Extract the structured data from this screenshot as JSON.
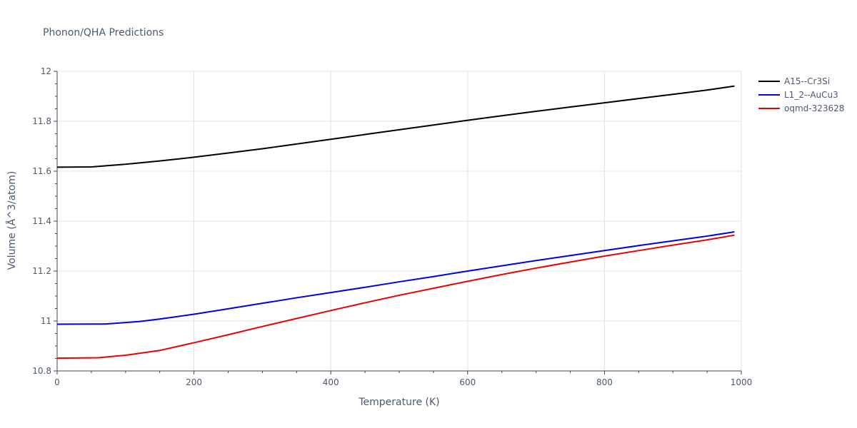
{
  "chart_data": {
    "type": "line",
    "title": "Phonon/QHA Predictions",
    "xlabel": "Temperature (K)",
    "ylabel": "Volume (Å^3/atom)",
    "xlim": [
      0,
      1000
    ],
    "ylim": [
      10.8,
      12
    ],
    "xticks": [
      0,
      200,
      400,
      600,
      800,
      1000
    ],
    "xtick_labels": [
      "0",
      "200",
      "400",
      "600",
      "800",
      "1000"
    ],
    "yticks": [
      10.8,
      11,
      11.2,
      11.4,
      11.6,
      11.8,
      12
    ],
    "ytick_labels": [
      "10.8",
      "11",
      "11.2",
      "11.4",
      "11.6",
      "11.8",
      "12"
    ],
    "grid": true,
    "legend_position": "top-right",
    "series": [
      {
        "name": "A15--Cr3Si",
        "color": "#000000",
        "x": [
          0,
          50,
          100,
          150,
          200,
          250,
          300,
          350,
          400,
          450,
          500,
          550,
          600,
          650,
          700,
          750,
          800,
          850,
          900,
          950,
          990
        ],
        "y": [
          11.616,
          11.617,
          11.628,
          11.641,
          11.656,
          11.673,
          11.69,
          11.709,
          11.728,
          11.747,
          11.766,
          11.785,
          11.804,
          11.822,
          11.84,
          11.857,
          11.874,
          11.891,
          11.908,
          11.925,
          11.941
        ]
      },
      {
        "name": "L1_2--AuCu3",
        "color": "#0000ee",
        "x": [
          0,
          70,
          120,
          150,
          200,
          250,
          300,
          350,
          400,
          450,
          500,
          550,
          600,
          650,
          700,
          750,
          800,
          850,
          900,
          950,
          990
        ],
        "y": [
          10.987,
          10.988,
          10.998,
          11.008,
          11.027,
          11.049,
          11.071,
          11.093,
          11.114,
          11.135,
          11.157,
          11.178,
          11.2,
          11.221,
          11.242,
          11.262,
          11.282,
          11.302,
          11.321,
          11.34,
          11.357
        ]
      },
      {
        "name": "oqmd-323628",
        "color": "#ee0000",
        "x": [
          0,
          60,
          100,
          150,
          200,
          250,
          300,
          350,
          400,
          450,
          500,
          550,
          600,
          650,
          700,
          750,
          800,
          850,
          900,
          950,
          990
        ],
        "y": [
          10.851,
          10.853,
          10.863,
          10.882,
          10.913,
          10.945,
          10.978,
          11.01,
          11.042,
          11.073,
          11.103,
          11.131,
          11.159,
          11.186,
          11.212,
          11.236,
          11.26,
          11.282,
          11.304,
          11.325,
          11.344
        ]
      }
    ]
  }
}
